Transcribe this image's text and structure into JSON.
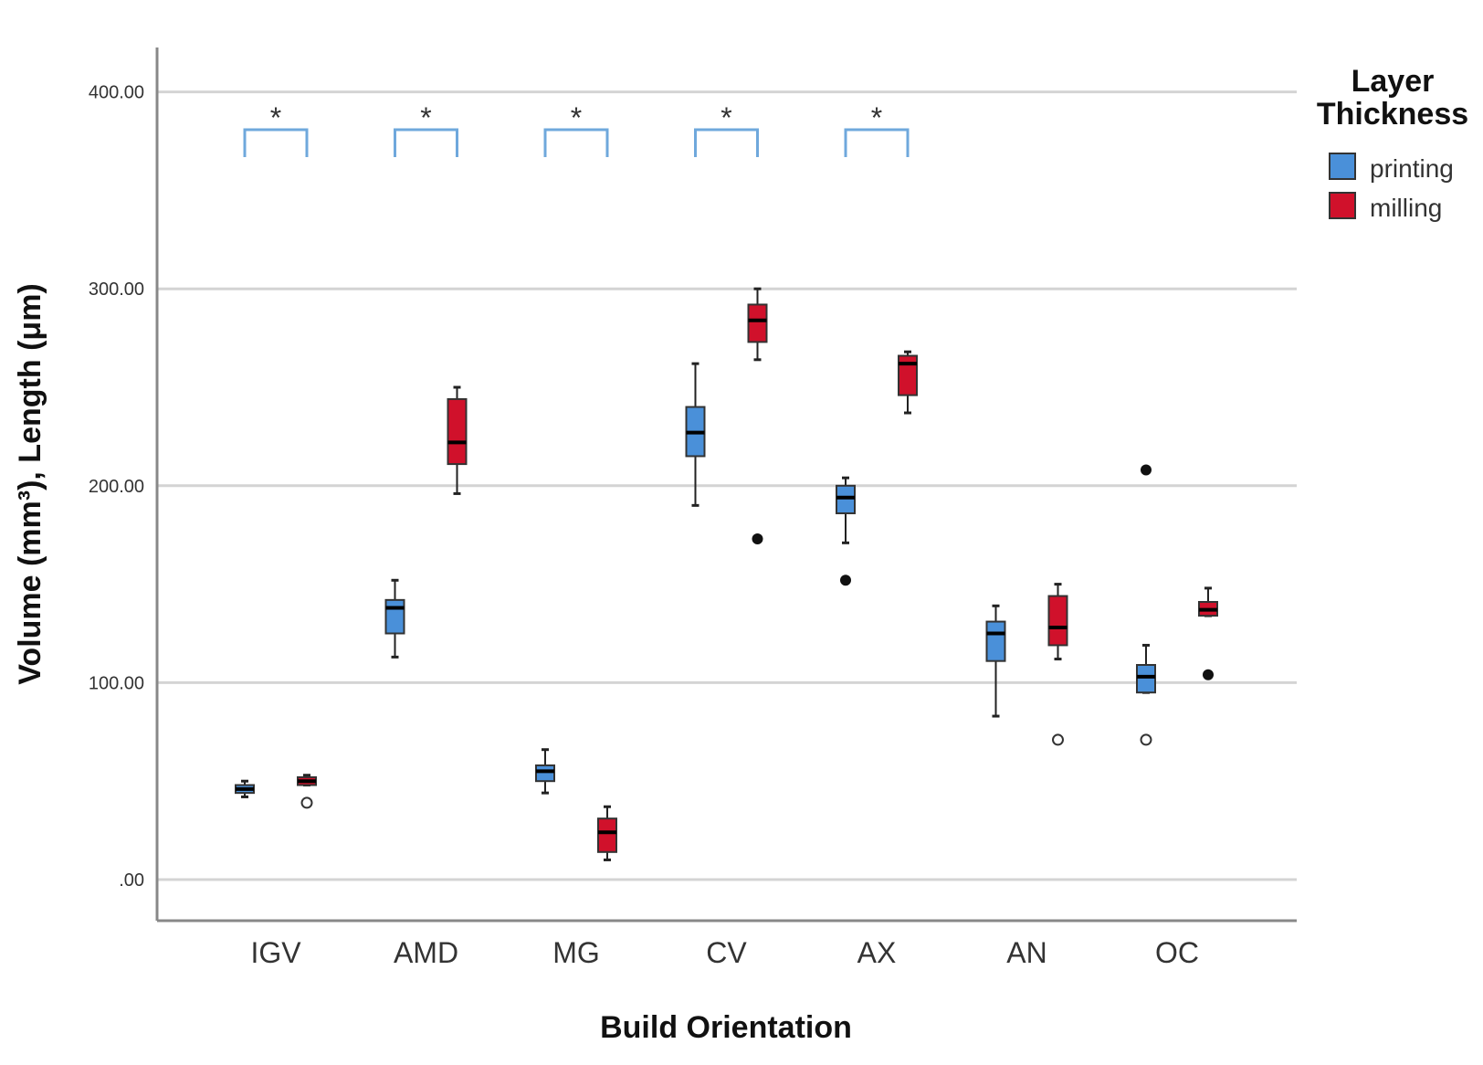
{
  "chart_data": {
    "type": "boxplot",
    "title": "",
    "xlabel": "Build Orientation",
    "ylabel": "Volume (mm³), Length (μm)",
    "ylim": [
      -20,
      420
    ],
    "yticks": [
      0,
      100,
      200,
      300,
      400
    ],
    "ytick_labels": [
      ".00",
      "100.00",
      "200.00",
      "300.00",
      "400.00"
    ],
    "categories": [
      "IGV",
      "AMD",
      "MG",
      "CV",
      "AX",
      "AN",
      "OC"
    ],
    "legend": {
      "title": "Layer Thickness",
      "title_lines": [
        "Layer",
        "Thickness"
      ],
      "position": "right"
    },
    "significance": {
      "symbol": "*",
      "categories": [
        "IGV",
        "AMD",
        "MG",
        "CV",
        "AX"
      ]
    },
    "series": [
      {
        "name": "printing",
        "color": "#4a90d9",
        "boxes": [
          {
            "category": "IGV",
            "min": 42,
            "q1": 44,
            "median": 46,
            "q3": 48,
            "max": 50,
            "outliers": [],
            "extremes": []
          },
          {
            "category": "AMD",
            "min": 113,
            "q1": 125,
            "median": 138,
            "q3": 142,
            "max": 152,
            "outliers": [],
            "extremes": []
          },
          {
            "category": "MG",
            "min": 44,
            "q1": 50,
            "median": 55,
            "q3": 58,
            "max": 66,
            "outliers": [],
            "extremes": []
          },
          {
            "category": "CV",
            "min": 190,
            "q1": 215,
            "median": 227,
            "q3": 240,
            "max": 262,
            "outliers": [],
            "extremes": []
          },
          {
            "category": "AX",
            "min": 171,
            "q1": 186,
            "median": 194,
            "q3": 200,
            "max": 204,
            "outliers": [],
            "extremes": [
              152
            ]
          },
          {
            "category": "AN",
            "min": 83,
            "q1": 111,
            "median": 125,
            "q3": 131,
            "max": 139,
            "outliers": [],
            "extremes": []
          },
          {
            "category": "OC",
            "min": 95,
            "q1": 95,
            "median": 103,
            "q3": 109,
            "max": 119,
            "outliers": [
              71
            ],
            "extremes": [
              208
            ]
          }
        ]
      },
      {
        "name": "milling",
        "color": "#d0112b",
        "boxes": [
          {
            "category": "IGV",
            "min": 48,
            "q1": 48,
            "median": 50,
            "q3": 52,
            "max": 53,
            "outliers": [
              39
            ],
            "extremes": []
          },
          {
            "category": "AMD",
            "min": 196,
            "q1": 211,
            "median": 222,
            "q3": 244,
            "max": 250,
            "outliers": [],
            "extremes": []
          },
          {
            "category": "MG",
            "min": 10,
            "q1": 14,
            "median": 24,
            "q3": 31,
            "max": 37,
            "outliers": [],
            "extremes": []
          },
          {
            "category": "CV",
            "min": 264,
            "q1": 273,
            "median": 284,
            "q3": 292,
            "max": 300,
            "outliers": [],
            "extremes": [
              173
            ]
          },
          {
            "category": "AX",
            "min": 237,
            "q1": 246,
            "median": 262,
            "q3": 266,
            "max": 268,
            "outliers": [],
            "extremes": []
          },
          {
            "category": "AN",
            "min": 112,
            "q1": 119,
            "median": 128,
            "q3": 144,
            "max": 150,
            "outliers": [
              71
            ],
            "extremes": []
          },
          {
            "category": "OC",
            "min": 134,
            "q1": 134,
            "median": 137,
            "q3": 141,
            "max": 148,
            "outliers": [],
            "extremes": [
              104
            ]
          }
        ]
      }
    ]
  }
}
